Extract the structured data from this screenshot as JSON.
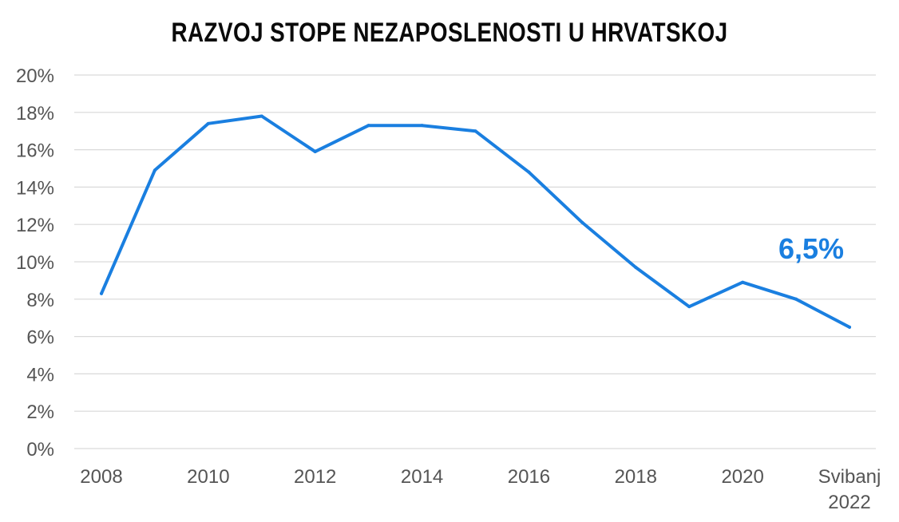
{
  "chart_data": {
    "type": "line",
    "title": "RAZVOJ STOPE NEZAPOSLENOSTI U HRVATSKOJ",
    "xlabel": "",
    "ylabel": "",
    "x": [
      "2008",
      "2009",
      "2010",
      "2011",
      "2012",
      "2013",
      "2014",
      "2015",
      "2016",
      "2017",
      "2018",
      "2019",
      "2020",
      "2021",
      "Svibanj 2022"
    ],
    "series": [
      {
        "values": [
          8.3,
          14.9,
          17.4,
          17.8,
          15.9,
          17.3,
          17.3,
          17.0,
          14.8,
          12.1,
          9.7,
          7.6,
          8.9,
          8.0,
          6.5
        ]
      }
    ],
    "x_tick_labels": [
      {
        "index": 0,
        "lines": [
          "2008"
        ]
      },
      {
        "index": 2,
        "lines": [
          "2010"
        ]
      },
      {
        "index": 4,
        "lines": [
          "2012"
        ]
      },
      {
        "index": 6,
        "lines": [
          "2014"
        ]
      },
      {
        "index": 8,
        "lines": [
          "2016"
        ]
      },
      {
        "index": 10,
        "lines": [
          "2018"
        ]
      },
      {
        "index": 12,
        "lines": [
          "2020"
        ]
      },
      {
        "index": 14,
        "lines": [
          "Svibanj",
          "2022"
        ]
      }
    ],
    "y_ticks": [
      0,
      2,
      4,
      6,
      8,
      10,
      12,
      14,
      16,
      18,
      20
    ],
    "y_tick_suffix": "%",
    "ylim": [
      0,
      20
    ],
    "grid": true,
    "annotation": {
      "text": "6,5%",
      "index": 14
    },
    "colors": {
      "line": "#1a7fe0",
      "annotation": "#1a7fe0",
      "grid": "#d9d9d9",
      "tick_text": "#555555",
      "title": "#0a0a0a"
    }
  }
}
